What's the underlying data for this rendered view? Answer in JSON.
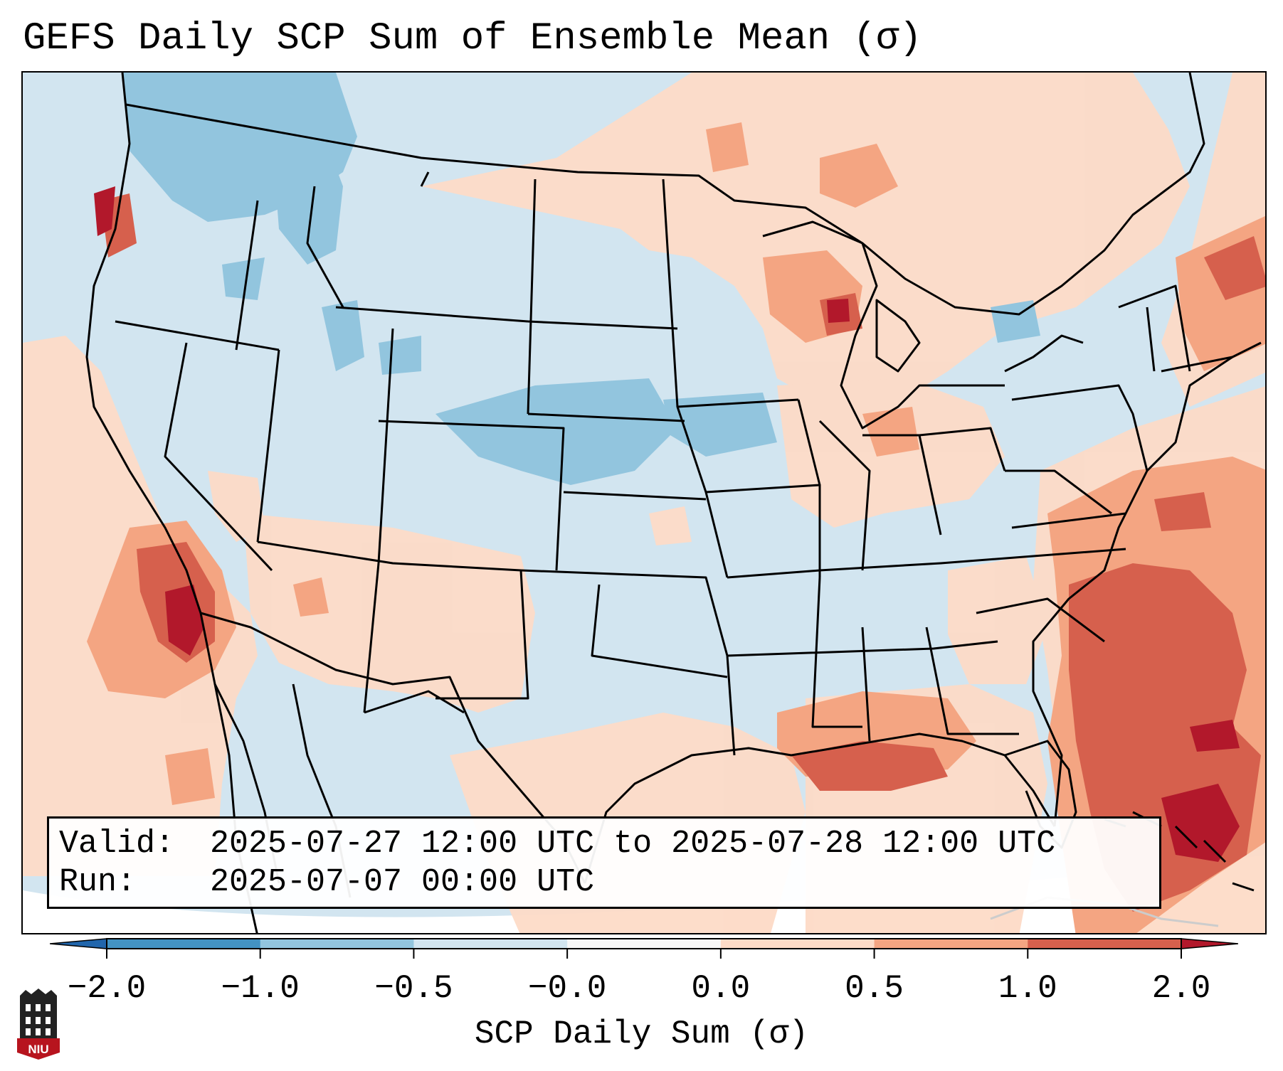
{
  "title": "GEFS Daily SCP Sum of Ensemble Mean (σ)",
  "map": {
    "region": "Continental United States",
    "palette": {
      "ocean_outside_projection": "#ffffff",
      "bin_-0.5_0.0": "#d2e5f0",
      "bin_-1.0_-0.5": "#92c5de",
      "bin_-2.0_-1.0": "#4393c3",
      "bin_0.0_0.5": "#fddbc7",
      "bin_0.5_1.0": "#f4a582",
      "bin_1.0_2.0": "#d6604d",
      "bin_above_2.0": "#b2182b",
      "boundaries": "#000000"
    }
  },
  "annotation": {
    "valid_label": "Valid:",
    "valid_value": "2025-07-27 12:00 UTC to 2025-07-28 12:00 UTC",
    "run_label": "Run:",
    "run_value": "2025-07-07 00:00 UTC"
  },
  "colorbar": {
    "ticks": [
      "−2.0",
      "−1.0",
      "−0.5",
      "−0.0",
      "0.0",
      "0.5",
      "1.0",
      "2.0"
    ],
    "colors": [
      "#4393c3",
      "#92c5de",
      "#d2e5f0",
      "#f7f7f7",
      "#fddbc7",
      "#f4a582",
      "#d6604d"
    ],
    "extend_low_color": "#2166ac",
    "extend_high_color": "#b2182b",
    "label": "SCP Daily Sum (σ)"
  },
  "logo": {
    "text": "NIU",
    "colors": {
      "shield": "#b7141e",
      "tower": "#222222"
    }
  }
}
